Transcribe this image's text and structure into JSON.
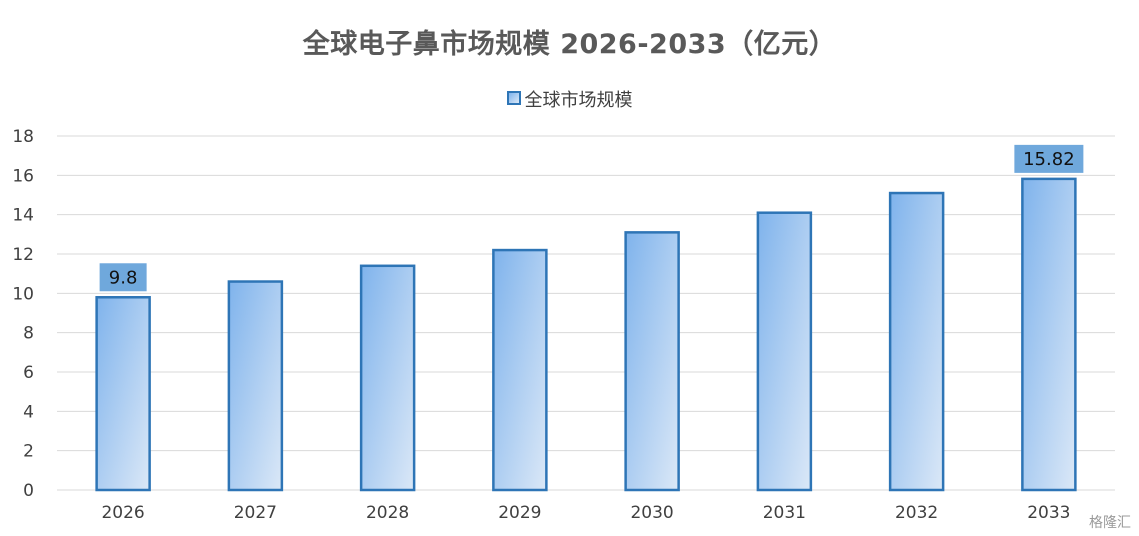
{
  "chart_data": {
    "type": "bar",
    "title": "全球电子鼻市场规模 2026-2033（亿元）",
    "categories": [
      "2026",
      "2027",
      "2028",
      "2029",
      "2030",
      "2031",
      "2032",
      "2033"
    ],
    "series": [
      {
        "name": "全球市场规模",
        "values": [
          9.8,
          10.6,
          11.4,
          12.2,
          13.1,
          14.1,
          15.1,
          15.82
        ]
      }
    ],
    "data_labels": {
      "2026": "9.8",
      "2033": "15.82"
    },
    "ylim": [
      0,
      18
    ],
    "yticks": [
      0,
      2,
      4,
      6,
      8,
      10,
      12,
      14,
      16,
      18
    ],
    "grid": true,
    "legend_position": "top",
    "colors": {
      "bar_fill_top": "#7fb3ec",
      "bar_fill_bottom": "#dbe8f7",
      "bar_border": "#2e75b6",
      "label_bg": "#6fa8dc",
      "grid": "#d9d9d9",
      "axis_text": "#404040"
    }
  },
  "watermark": "格隆汇"
}
